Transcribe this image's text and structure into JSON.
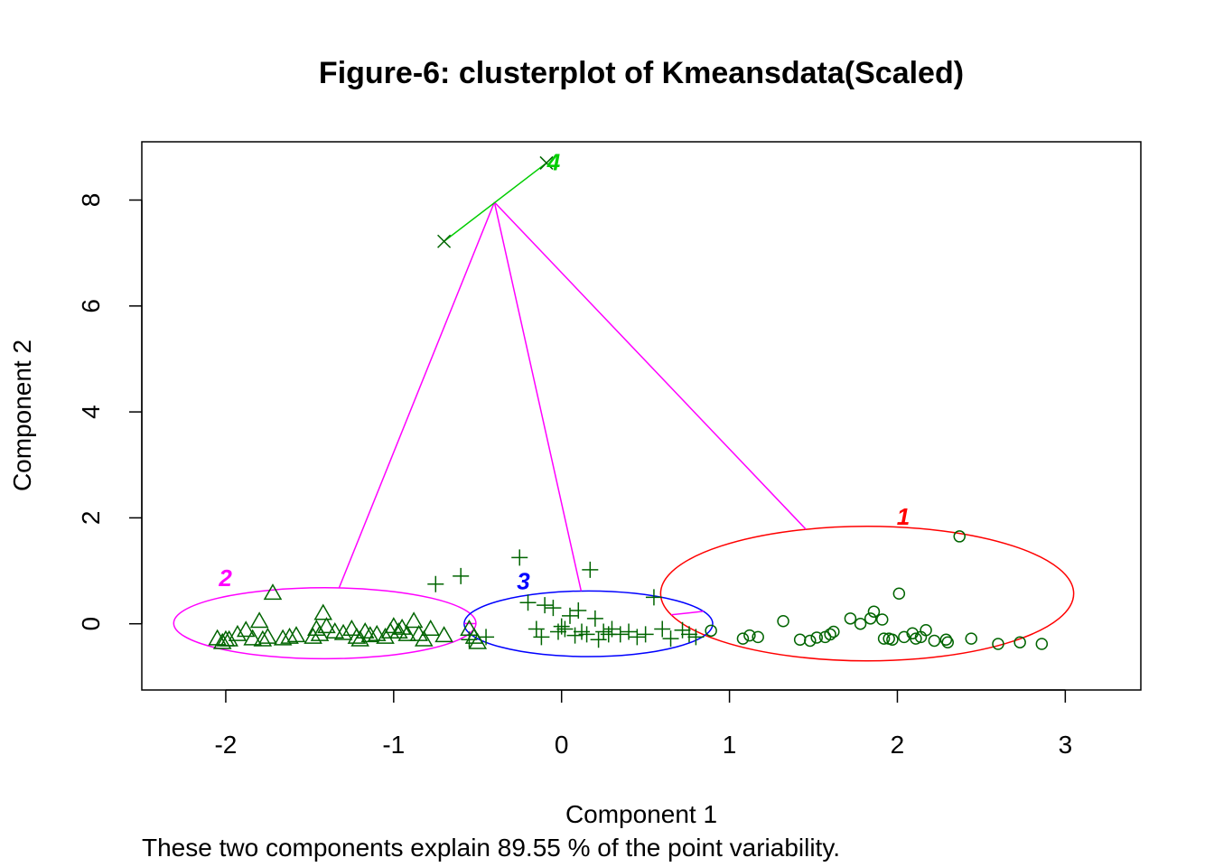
{
  "chart_data": {
    "type": "scatter",
    "title": "Figure-6: clusterplot of Kmeansdata(Scaled)",
    "xlabel": "Component 1",
    "ylabel": "Component 2",
    "subtitle": "These two components explain 89.55 % of the point variability.",
    "xlim": [
      -2.5,
      3.45
    ],
    "ylim": [
      -1.25,
      9.1
    ],
    "xticks": [
      -2,
      -1,
      0,
      1,
      2,
      3
    ],
    "yticks": [
      0,
      2,
      4,
      6,
      8
    ],
    "xtick_labels": [
      "-2",
      "-1",
      "0",
      "1",
      "2",
      "3"
    ],
    "ytick_labels": [
      "0",
      "2",
      "4",
      "6",
      "8"
    ],
    "grid": false,
    "point_color": "#006400",
    "clusters": [
      {
        "label": "1",
        "color": "#ff0000",
        "marker": "circle",
        "center": [
          1.82,
          0.57
        ],
        "ellipse": {
          "center": [
            1.82,
            0.57
          ],
          "rx": 1.23,
          "ry": 1.27
        },
        "points": [
          [
            0.89,
            -0.13
          ],
          [
            1.08,
            -0.28
          ],
          [
            1.12,
            -0.22
          ],
          [
            1.17,
            -0.25
          ],
          [
            1.32,
            0.05
          ],
          [
            1.42,
            -0.3
          ],
          [
            1.48,
            -0.32
          ],
          [
            1.52,
            -0.26
          ],
          [
            1.57,
            -0.25
          ],
          [
            1.6,
            -0.2
          ],
          [
            1.62,
            -0.15
          ],
          [
            1.72,
            0.1
          ],
          [
            1.78,
            0.0
          ],
          [
            1.84,
            0.1
          ],
          [
            1.86,
            0.23
          ],
          [
            1.91,
            0.08
          ],
          [
            1.92,
            -0.28
          ],
          [
            1.95,
            -0.28
          ],
          [
            1.97,
            -0.3
          ],
          [
            2.01,
            0.57
          ],
          [
            2.04,
            -0.25
          ],
          [
            2.09,
            -0.18
          ],
          [
            2.11,
            -0.28
          ],
          [
            2.14,
            -0.25
          ],
          [
            2.17,
            -0.12
          ],
          [
            2.22,
            -0.32
          ],
          [
            2.29,
            -0.3
          ],
          [
            2.3,
            -0.35
          ],
          [
            2.37,
            1.65
          ],
          [
            2.44,
            -0.28
          ],
          [
            2.6,
            -0.38
          ],
          [
            2.73,
            -0.35
          ],
          [
            2.86,
            -0.38
          ]
        ]
      },
      {
        "label": "2",
        "color": "#ff00ff",
        "marker": "triangle",
        "center": [
          -1.41,
          0.01
        ],
        "ellipse": {
          "center": [
            -1.41,
            0.01
          ],
          "rx": 0.9,
          "ry": 0.67
        },
        "points": [
          [
            -2.05,
            -0.28
          ],
          [
            -2.02,
            -0.35
          ],
          [
            -2.0,
            -0.3
          ],
          [
            -1.98,
            -0.3
          ],
          [
            -1.93,
            -0.2
          ],
          [
            -1.88,
            -0.12
          ],
          [
            -1.84,
            -0.28
          ],
          [
            -1.8,
            0.05
          ],
          [
            -1.78,
            -0.3
          ],
          [
            -1.75,
            -0.25
          ],
          [
            -1.72,
            0.58
          ],
          [
            -1.66,
            -0.28
          ],
          [
            -1.62,
            -0.25
          ],
          [
            -1.58,
            -0.22
          ],
          [
            -1.48,
            -0.25
          ],
          [
            -1.46,
            -0.1
          ],
          [
            -1.44,
            -0.2
          ],
          [
            -1.42,
            0.2
          ],
          [
            -1.4,
            -0.05
          ],
          [
            -1.35,
            -0.15
          ],
          [
            -1.3,
            -0.18
          ],
          [
            -1.25,
            -0.1
          ],
          [
            -1.22,
            -0.25
          ],
          [
            -1.2,
            -0.3
          ],
          [
            -1.17,
            -0.15
          ],
          [
            -1.14,
            -0.22
          ],
          [
            -1.1,
            -0.2
          ],
          [
            -1.05,
            -0.25
          ],
          [
            -1.02,
            -0.15
          ],
          [
            -1.0,
            -0.05
          ],
          [
            -0.97,
            -0.15
          ],
          [
            -0.95,
            -0.08
          ],
          [
            -0.92,
            -0.2
          ],
          [
            -0.88,
            0.05
          ],
          [
            -0.85,
            -0.2
          ],
          [
            -0.82,
            -0.3
          ],
          [
            -0.78,
            -0.1
          ],
          [
            -0.7,
            -0.22
          ],
          [
            -0.55,
            -0.1
          ],
          [
            -0.52,
            -0.25
          ],
          [
            -0.5,
            -0.35
          ]
        ]
      },
      {
        "label": "3",
        "color": "#0000ff",
        "marker": "plus",
        "center": [
          0.16,
          0.0
        ],
        "ellipse": {
          "center": [
            0.16,
            0.0
          ],
          "rx": 0.74,
          "ry": 0.62
        },
        "points": [
          [
            -0.75,
            0.75
          ],
          [
            -0.6,
            0.9
          ],
          [
            -0.55,
            -0.3
          ],
          [
            -0.45,
            -0.25
          ],
          [
            -0.25,
            1.25
          ],
          [
            -0.2,
            0.4
          ],
          [
            -0.15,
            -0.1
          ],
          [
            -0.12,
            -0.25
          ],
          [
            -0.1,
            0.35
          ],
          [
            -0.05,
            0.3
          ],
          [
            -0.02,
            -0.15
          ],
          [
            0.0,
            -0.05
          ],
          [
            0.02,
            -0.1
          ],
          [
            0.05,
            0.15
          ],
          [
            0.08,
            -0.22
          ],
          [
            0.1,
            0.25
          ],
          [
            0.12,
            -0.15
          ],
          [
            0.15,
            -0.2
          ],
          [
            0.17,
            1.02
          ],
          [
            0.2,
            0.1
          ],
          [
            0.22,
            -0.3
          ],
          [
            0.25,
            -0.15
          ],
          [
            0.28,
            -0.2
          ],
          [
            0.3,
            -0.1
          ],
          [
            0.35,
            -0.2
          ],
          [
            0.4,
            -0.15
          ],
          [
            0.45,
            -0.25
          ],
          [
            0.5,
            -0.2
          ],
          [
            0.55,
            0.5
          ],
          [
            0.6,
            -0.1
          ],
          [
            0.65,
            -0.28
          ],
          [
            0.72,
            -0.12
          ],
          [
            0.76,
            -0.2
          ],
          [
            0.8,
            -0.25
          ]
        ]
      },
      {
        "label": "4",
        "color": "#00cd00",
        "marker": "cross",
        "center": [
          -0.4,
          7.96
        ],
        "ellipse": null,
        "points": [
          [
            -0.7,
            7.22
          ],
          [
            -0.09,
            8.7
          ]
        ]
      }
    ]
  }
}
